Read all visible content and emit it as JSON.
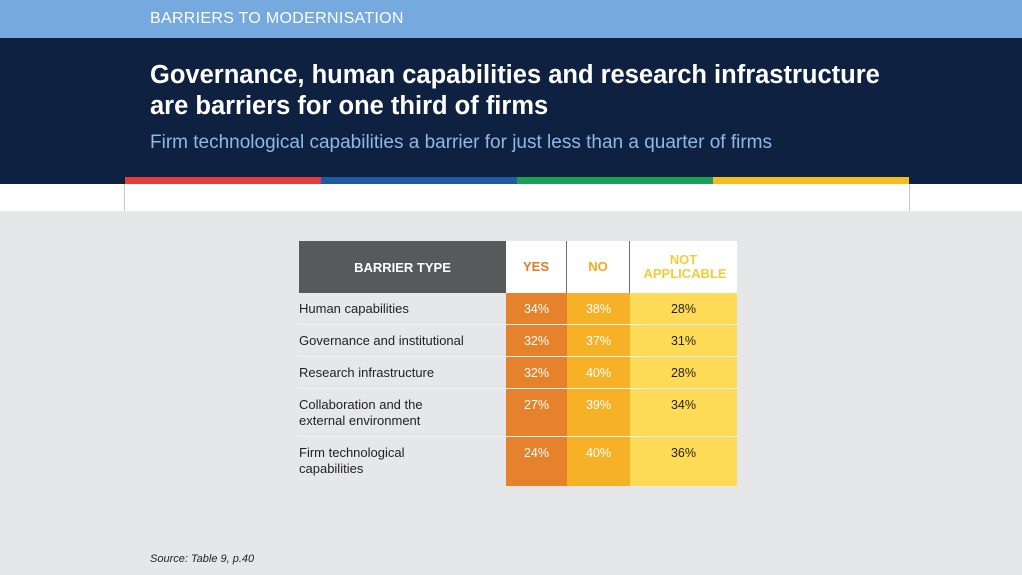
{
  "section_label": "BARRIERS TO MODERNISATION",
  "title": "Governance, human capabilities and research infrastructure are barriers for one third of firms",
  "subtitle": "Firm technological capabilities a barrier for just less than a quarter of firms",
  "colors": {
    "stripe": [
      "#e63b3c",
      "#1f5aa6",
      "#1ba05a",
      "#f4bc1c"
    ],
    "yes": "#e5822b",
    "no": "#f7b127",
    "not_applicable": "#fddb57"
  },
  "source": "Source: Table 9, p.40",
  "chart_data": {
    "type": "table",
    "columns": [
      "BARRIER TYPE",
      "YES",
      "NO",
      "NOT APPLICABLE"
    ],
    "rows": [
      {
        "barrier": "Human capabilities",
        "yes": "34%",
        "no": "38%",
        "not_applicable": "28%"
      },
      {
        "barrier": "Governance and institutional",
        "yes": "32%",
        "no": "37%",
        "not_applicable": "31%"
      },
      {
        "barrier": "Research infrastructure",
        "yes": "32%",
        "no": "40%",
        "not_applicable": "28%"
      },
      {
        "barrier": "Collaboration and the external environment",
        "yes": "27%",
        "no": "39%",
        "not_applicable": "34%"
      },
      {
        "barrier": "Firm technological capabilities",
        "yes": "24%",
        "no": "40%",
        "not_applicable": "36%"
      }
    ]
  }
}
